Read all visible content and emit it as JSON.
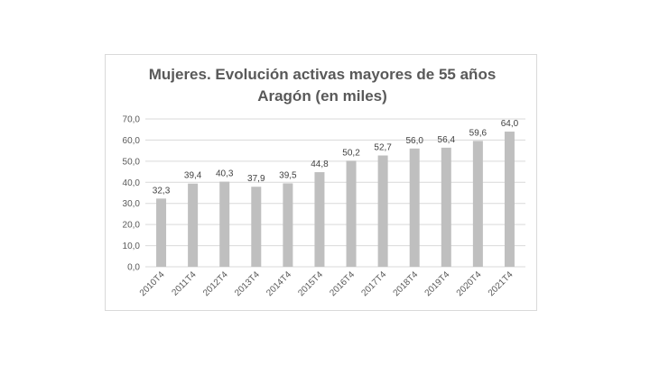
{
  "chart_data": {
    "type": "bar",
    "title": "Mujeres. Evolución activas mayores de 55 años",
    "subtitle": "Aragón (en miles)",
    "categories": [
      "2010T4",
      "2011T4",
      "2012T4",
      "2013T4",
      "2014T4",
      "2015T4",
      "2016T4",
      "2017T4",
      "2018T4",
      "2019T4",
      "2020T4",
      "2021T4"
    ],
    "values": [
      32.3,
      39.4,
      40.3,
      37.9,
      39.5,
      44.8,
      50.2,
      52.7,
      56.0,
      56.4,
      59.6,
      64.0
    ],
    "value_labels": [
      "32,3",
      "39,4",
      "40,3",
      "37,9",
      "39,5",
      "44,8",
      "50,2",
      "52,7",
      "56,0",
      "56,4",
      "59,6",
      "64,0"
    ],
    "yticks": [
      0,
      10,
      20,
      30,
      40,
      50,
      60,
      70
    ],
    "ytick_labels": [
      "0,0",
      "10,0",
      "20,0",
      "30,0",
      "40,0",
      "50,0",
      "60,0",
      "70,0"
    ],
    "ylim": [
      0,
      70
    ],
    "xlabel": "",
    "ylabel": "",
    "grid": true,
    "bar_color": "#bfbfbf",
    "grid_color": "#d9d9d9",
    "legend": "none"
  }
}
